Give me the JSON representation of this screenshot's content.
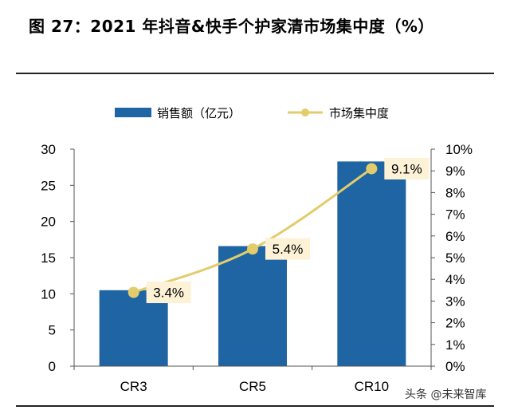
{
  "title": "图 27：2021 年抖音&快手个护家清市场集中度（%）",
  "watermark": "头条 @未来智库",
  "colors": {
    "bar": "#1f65a3",
    "line": "#e2cc6b",
    "label_bg": "#fdf2d5"
  },
  "chart_data": {
    "type": "bar+line",
    "categories": [
      "CR3",
      "CR5",
      "CR10"
    ],
    "series": [
      {
        "name": "销售额（亿元）",
        "type": "bar",
        "axis": "left",
        "values": [
          10.5,
          16.6,
          28.3
        ]
      },
      {
        "name": "市场集中度",
        "type": "line",
        "axis": "right",
        "values": [
          3.4,
          5.4,
          9.1
        ],
        "labels": [
          "3.4%",
          "5.4%",
          "9.1%"
        ]
      }
    ],
    "y_left": {
      "min": 0,
      "max": 30,
      "ticks": [
        "0",
        "5",
        "10",
        "15",
        "20",
        "25",
        "30"
      ]
    },
    "y_right": {
      "min": 0,
      "max": 10,
      "ticks": [
        "0%",
        "1%",
        "2%",
        "3%",
        "4%",
        "5%",
        "6%",
        "7%",
        "8%",
        "9%",
        "10%"
      ]
    },
    "legend_position": "top",
    "grid": false
  }
}
